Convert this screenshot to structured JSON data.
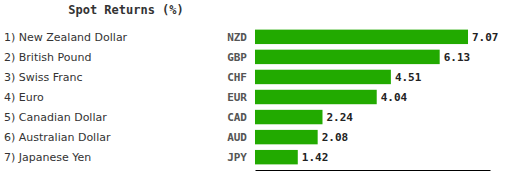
{
  "chart_data": {
    "type": "bar",
    "orientation": "horizontal",
    "title": "Spot Returns   (%)",
    "categories": [
      "1) New Zealand Dollar",
      "2) British Pound",
      "3) Swiss Franc",
      "4) Euro",
      "5) Canadian Dollar",
      "6) Australian Dollar",
      "7) Japanese Yen"
    ],
    "tickers": [
      "NZD",
      "GBP",
      "CHF",
      "EUR",
      "CAD",
      "AUD",
      "JPY"
    ],
    "values": [
      7.07,
      6.13,
      4.51,
      4.04,
      2.24,
      2.08,
      1.42
    ],
    "color": "#22aa00",
    "xlim": [
      0,
      7.8
    ],
    "data_labels": true,
    "tick_labels": false
  }
}
